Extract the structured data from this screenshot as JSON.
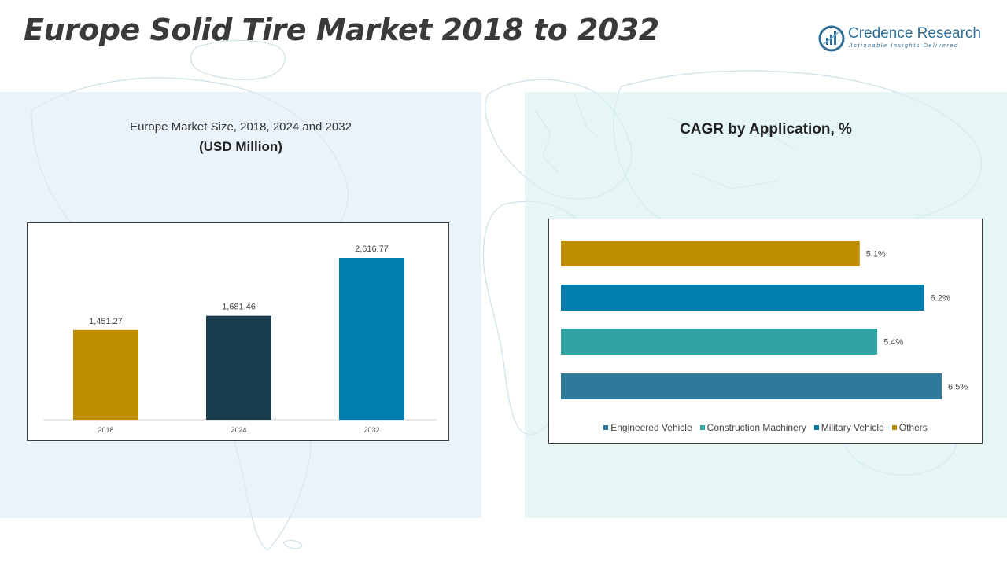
{
  "page": {
    "title": "Europe Solid Tire Market 2018 to 2032"
  },
  "logo": {
    "name": "Credence Research",
    "tagline": "Actionable Insights Delivered"
  },
  "left_panel": {
    "heading": "Europe Market Size, 2018, 2024 and 2032",
    "unit": "(USD Million)"
  },
  "right_panel": {
    "heading": "CAGR by Application, %"
  },
  "colors": {
    "gold": "#BE8E00",
    "dark_teal": "#193C4D",
    "blue": "#007FAE",
    "teal": "#30A3A3",
    "steel_blue": "#2F7A9B"
  },
  "chart_data": [
    {
      "type": "bar",
      "categories": [
        "2018",
        "2024",
        "2032"
      ],
      "values": [
        1451.27,
        1681.46,
        2616.77
      ],
      "data_labels": [
        "1,451.27",
        "1,681.46",
        "2,616.77"
      ],
      "colors": [
        "#BE8E00",
        "#193C4D",
        "#007FAE"
      ],
      "ylim": [
        0,
        2616.77
      ],
      "title": "Europe Market Size, 2018, 2024 and 2032",
      "ylabel": "(USD Million)",
      "grid": false
    },
    {
      "type": "bar",
      "orientation": "horizontal",
      "categories": [
        "Others",
        "Military Vehicle",
        "Construction Machinery",
        "Engineered Vehicle"
      ],
      "values": [
        5.1,
        6.2,
        5.4,
        6.5
      ],
      "data_labels": [
        "5.1%",
        "6.2%",
        "5.4%",
        "6.5%"
      ],
      "colors": [
        "#BE8E00",
        "#007FAE",
        "#30A3A3",
        "#2F7A9B"
      ],
      "xlim": [
        0,
        6.5
      ],
      "title": "CAGR by Application, %",
      "legend": {
        "placement": "bottom",
        "entries": [
          {
            "label": "Engineered Vehicle",
            "color": "#2F7A9B"
          },
          {
            "label": "Construction Machinery",
            "color": "#30A3A3"
          },
          {
            "label": "Military Vehicle",
            "color": "#007FAE"
          },
          {
            "label": "Others",
            "color": "#BE8E00"
          }
        ]
      },
      "grid": false
    }
  ]
}
